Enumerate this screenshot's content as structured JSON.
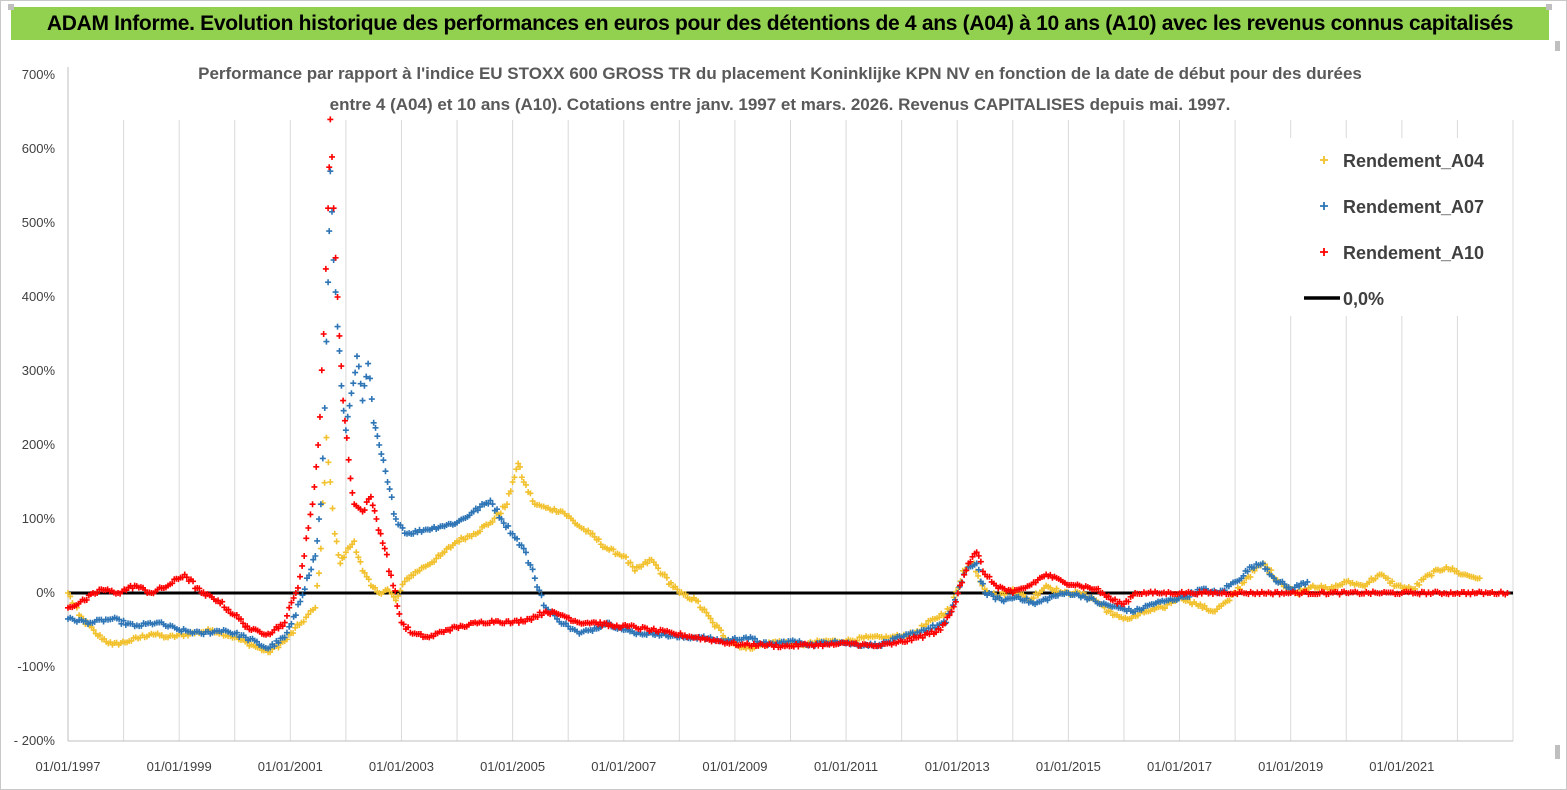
{
  "header": {
    "title": "ADAM Informe. Evolution historique des performances en euros pour des détentions de 4 ans (A04) à 10 ans (A10) avec les revenus connus capitalisés"
  },
  "chart_data": {
    "type": "scatter",
    "title_lines": [
      "Performance par rapport à l'indice EU STOXX 600 GROSS TR  du placement Koninklijke KPN NV en fonction de la date de début pour des durées",
      "entre 4 (A04) et 10 ans (A10). Cotations entre janv. 1997 et mars. 2026. Revenus CAPITALISES depuis mai. 1997."
    ],
    "xlabel": "",
    "ylabel": "",
    "x_range": [
      1997.0,
      2023.0
    ],
    "ylim": [
      -200,
      700
    ],
    "x_ticks": [
      {
        "x": 1997,
        "label": "01/01/1997"
      },
      {
        "x": 1999,
        "label": "01/01/1999"
      },
      {
        "x": 2001,
        "label": "01/01/2001"
      },
      {
        "x": 2003,
        "label": "01/01/2003"
      },
      {
        "x": 2005,
        "label": "01/01/2005"
      },
      {
        "x": 2007,
        "label": "01/01/2007"
      },
      {
        "x": 2009,
        "label": "01/01/2009"
      },
      {
        "x": 2011,
        "label": "01/01/2011"
      },
      {
        "x": 2013,
        "label": "01/01/2013"
      },
      {
        "x": 2015,
        "label": "01/01/2015"
      },
      {
        "x": 2017,
        "label": "01/01/2017"
      },
      {
        "x": 2019,
        "label": "01/01/2019"
      },
      {
        "x": 2021,
        "label": "01/01/2021"
      }
    ],
    "y_ticks": [
      {
        "y": 700,
        "label": "700%"
      },
      {
        "y": 600,
        "label": "600%"
      },
      {
        "y": 500,
        "label": "500%"
      },
      {
        "y": 400,
        "label": "400%"
      },
      {
        "y": 300,
        "label": "300%"
      },
      {
        "y": 200,
        "label": "200%"
      },
      {
        "y": 100,
        "label": "100%"
      },
      {
        "y": 0,
        "label": "0%"
      },
      {
        "y": -100,
        "label": "-100%"
      },
      {
        "y": -200,
        "label": "- 200%"
      }
    ],
    "grid": {
      "vertical": true,
      "horizontal": false
    },
    "legend_position": "top-right",
    "series": [
      {
        "name": "Rendement_A04",
        "color": "#f2c12e",
        "marker": "+",
        "points": [
          [
            1997.0,
            0
          ],
          [
            1997.2,
            -30
          ],
          [
            1997.5,
            -55
          ],
          [
            1997.8,
            -70
          ],
          [
            1998.1,
            -65
          ],
          [
            1998.5,
            -55
          ],
          [
            1998.8,
            -60
          ],
          [
            1999.2,
            -55
          ],
          [
            1999.6,
            -50
          ],
          [
            2000.0,
            -60
          ],
          [
            2000.3,
            -70
          ],
          [
            2000.6,
            -80
          ],
          [
            2000.9,
            -65
          ],
          [
            2001.2,
            -40
          ],
          [
            2001.45,
            -20
          ],
          [
            2001.55,
            60
          ],
          [
            2001.65,
            210
          ],
          [
            2001.72,
            150
          ],
          [
            2001.8,
            80
          ],
          [
            2001.9,
            40
          ],
          [
            2002.0,
            55
          ],
          [
            2002.15,
            70
          ],
          [
            2002.3,
            30
          ],
          [
            2002.45,
            10
          ],
          [
            2002.6,
            0
          ],
          [
            2002.75,
            5
          ],
          [
            2002.9,
            -10
          ],
          [
            2003.1,
            20
          ],
          [
            2003.4,
            35
          ],
          [
            2003.7,
            50
          ],
          [
            2004.0,
            70
          ],
          [
            2004.3,
            80
          ],
          [
            2004.6,
            95
          ],
          [
            2004.9,
            120
          ],
          [
            2005.0,
            150
          ],
          [
            2005.1,
            175
          ],
          [
            2005.2,
            150
          ],
          [
            2005.4,
            120
          ],
          [
            2005.6,
            115
          ],
          [
            2005.9,
            110
          ],
          [
            2006.2,
            90
          ],
          [
            2006.4,
            80
          ],
          [
            2006.7,
            60
          ],
          [
            2007.0,
            50
          ],
          [
            2007.2,
            30
          ],
          [
            2007.5,
            45
          ],
          [
            2007.7,
            25
          ],
          [
            2008.0,
            0
          ],
          [
            2008.3,
            -10
          ],
          [
            2008.6,
            -40
          ],
          [
            2008.9,
            -65
          ],
          [
            2009.2,
            -75
          ],
          [
            2009.5,
            -70
          ],
          [
            2009.8,
            -65
          ],
          [
            2010.2,
            -70
          ],
          [
            2010.6,
            -65
          ],
          [
            2011.0,
            -65
          ],
          [
            2011.4,
            -60
          ],
          [
            2011.8,
            -60
          ],
          [
            2012.2,
            -55
          ],
          [
            2012.6,
            -35
          ],
          [
            2012.9,
            -20
          ],
          [
            2013.1,
            30
          ],
          [
            2013.3,
            40
          ],
          [
            2013.45,
            10
          ],
          [
            2013.7,
            -5
          ],
          [
            2014.0,
            5
          ],
          [
            2014.3,
            -10
          ],
          [
            2014.6,
            10
          ],
          [
            2014.9,
            0
          ],
          [
            2015.2,
            0
          ],
          [
            2015.5,
            -10
          ],
          [
            2015.8,
            -30
          ],
          [
            2016.1,
            -35
          ],
          [
            2016.4,
            -25
          ],
          [
            2016.7,
            -20
          ],
          [
            2017.0,
            -5
          ],
          [
            2017.3,
            -15
          ],
          [
            2017.6,
            -25
          ],
          [
            2017.9,
            -10
          ],
          [
            2018.2,
            20
          ],
          [
            2018.5,
            40
          ],
          [
            2018.8,
            15
          ],
          [
            2019.1,
            0
          ],
          [
            2019.4,
            10
          ],
          [
            2019.7,
            5
          ],
          [
            2020.0,
            15
          ],
          [
            2020.3,
            10
          ],
          [
            2020.6,
            25
          ],
          [
            2020.9,
            10
          ],
          [
            2021.2,
            5
          ],
          [
            2021.5,
            25
          ],
          [
            2021.8,
            35
          ],
          [
            2022.1,
            25
          ],
          [
            2022.4,
            20
          ]
        ]
      },
      {
        "name": "Rendement_A07",
        "color": "#2e75b6",
        "marker": "+",
        "points": [
          [
            1997.0,
            -35
          ],
          [
            1997.4,
            -40
          ],
          [
            1997.8,
            -35
          ],
          [
            1998.2,
            -45
          ],
          [
            1998.6,
            -40
          ],
          [
            1999.0,
            -50
          ],
          [
            1999.4,
            -55
          ],
          [
            1999.8,
            -50
          ],
          [
            2000.2,
            -60
          ],
          [
            2000.6,
            -75
          ],
          [
            2000.9,
            -60
          ],
          [
            2001.1,
            -30
          ],
          [
            2001.3,
            20
          ],
          [
            2001.45,
            50
          ],
          [
            2001.55,
            120
          ],
          [
            2001.62,
            250
          ],
          [
            2001.68,
            420
          ],
          [
            2001.72,
            570
          ],
          [
            2001.78,
            450
          ],
          [
            2001.85,
            360
          ],
          [
            2001.92,
            280
          ],
          [
            2002.0,
            220
          ],
          [
            2002.1,
            270
          ],
          [
            2002.2,
            320
          ],
          [
            2002.3,
            260
          ],
          [
            2002.4,
            310
          ],
          [
            2002.5,
            230
          ],
          [
            2002.6,
            200
          ],
          [
            2002.75,
            150
          ],
          [
            2002.9,
            100
          ],
          [
            2003.1,
            80
          ],
          [
            2003.4,
            85
          ],
          [
            2003.7,
            90
          ],
          [
            2004.0,
            95
          ],
          [
            2004.3,
            110
          ],
          [
            2004.6,
            125
          ],
          [
            2004.8,
            100
          ],
          [
            2005.0,
            80
          ],
          [
            2005.2,
            60
          ],
          [
            2005.4,
            20
          ],
          [
            2005.6,
            -20
          ],
          [
            2005.8,
            -35
          ],
          [
            2006.0,
            -45
          ],
          [
            2006.2,
            -55
          ],
          [
            2006.4,
            -50
          ],
          [
            2006.7,
            -40
          ],
          [
            2007.0,
            -50
          ],
          [
            2007.3,
            -55
          ],
          [
            2007.6,
            -55
          ],
          [
            2008.0,
            -60
          ],
          [
            2008.4,
            -60
          ],
          [
            2008.8,
            -65
          ],
          [
            2009.2,
            -60
          ],
          [
            2009.6,
            -70
          ],
          [
            2010.0,
            -65
          ],
          [
            2010.4,
            -70
          ],
          [
            2010.8,
            -65
          ],
          [
            2011.2,
            -70
          ],
          [
            2011.6,
            -70
          ],
          [
            2012.0,
            -60
          ],
          [
            2012.4,
            -50
          ],
          [
            2012.8,
            -40
          ],
          [
            2013.0,
            0
          ],
          [
            2013.2,
            35
          ],
          [
            2013.35,
            40
          ],
          [
            2013.5,
            0
          ],
          [
            2013.8,
            -10
          ],
          [
            2014.1,
            -5
          ],
          [
            2014.4,
            -15
          ],
          [
            2014.7,
            -5
          ],
          [
            2015.0,
            0
          ],
          [
            2015.3,
            -5
          ],
          [
            2015.6,
            -15
          ],
          [
            2015.9,
            -20
          ],
          [
            2016.2,
            -25
          ],
          [
            2016.5,
            -15
          ],
          [
            2016.8,
            -10
          ],
          [
            2017.1,
            -5
          ],
          [
            2017.4,
            5
          ],
          [
            2017.7,
            0
          ],
          [
            2018.0,
            15
          ],
          [
            2018.3,
            35
          ],
          [
            2018.5,
            40
          ],
          [
            2018.7,
            20
          ],
          [
            2019.0,
            5
          ],
          [
            2019.3,
            15
          ]
        ]
      },
      {
        "name": "Rendement_A10",
        "color": "#ff0000",
        "marker": "+",
        "points": [
          [
            1997.0,
            -20
          ],
          [
            1997.3,
            -10
          ],
          [
            1997.6,
            5
          ],
          [
            1997.9,
            0
          ],
          [
            1998.2,
            10
          ],
          [
            1998.5,
            0
          ],
          [
            1998.8,
            10
          ],
          [
            1999.1,
            25
          ],
          [
            1999.4,
            0
          ],
          [
            1999.7,
            -10
          ],
          [
            2000.0,
            -30
          ],
          [
            2000.3,
            -50
          ],
          [
            2000.6,
            -55
          ],
          [
            2000.9,
            -40
          ],
          [
            2001.1,
            0
          ],
          [
            2001.25,
            50
          ],
          [
            2001.4,
            120
          ],
          [
            2001.5,
            200
          ],
          [
            2001.6,
            350
          ],
          [
            2001.68,
            520
          ],
          [
            2001.72,
            640
          ],
          [
            2001.78,
            520
          ],
          [
            2001.85,
            400
          ],
          [
            2001.95,
            260
          ],
          [
            2002.05,
            180
          ],
          [
            2002.15,
            120
          ],
          [
            2002.3,
            110
          ],
          [
            2002.45,
            130
          ],
          [
            2002.55,
            100
          ],
          [
            2002.7,
            60
          ],
          [
            2002.85,
            10
          ],
          [
            2003.0,
            -40
          ],
          [
            2003.2,
            -55
          ],
          [
            2003.5,
            -60
          ],
          [
            2003.8,
            -50
          ],
          [
            2004.1,
            -45
          ],
          [
            2004.4,
            -40
          ],
          [
            2004.7,
            -38
          ],
          [
            2005.0,
            -40
          ],
          [
            2005.3,
            -35
          ],
          [
            2005.6,
            -25
          ],
          [
            2005.9,
            -30
          ],
          [
            2006.2,
            -40
          ],
          [
            2006.5,
            -40
          ],
          [
            2006.8,
            -45
          ],
          [
            2007.1,
            -45
          ],
          [
            2007.5,
            -50
          ],
          [
            2007.9,
            -55
          ],
          [
            2008.3,
            -60
          ],
          [
            2008.7,
            -65
          ],
          [
            2009.1,
            -70
          ],
          [
            2009.5,
            -70
          ],
          [
            2009.9,
            -72
          ],
          [
            2010.3,
            -70
          ],
          [
            2010.7,
            -70
          ],
          [
            2011.1,
            -68
          ],
          [
            2011.5,
            -72
          ],
          [
            2011.9,
            -68
          ],
          [
            2012.3,
            -60
          ],
          [
            2012.7,
            -50
          ],
          [
            2012.9,
            -25
          ],
          [
            2013.05,
            10
          ],
          [
            2013.2,
            40
          ],
          [
            2013.35,
            55
          ],
          [
            2013.5,
            25
          ],
          [
            2013.7,
            10
          ],
          [
            2014.0,
            0
          ],
          [
            2014.3,
            10
          ],
          [
            2014.6,
            25
          ],
          [
            2014.9,
            15
          ],
          [
            2015.2,
            10
          ],
          [
            2015.5,
            5
          ],
          [
            2015.8,
            -10
          ],
          [
            2016.0,
            -15
          ],
          [
            2016.2,
            0
          ],
          [
            2016.6,
            0
          ],
          [
            2017.2,
            0
          ],
          [
            2018.0,
            0
          ],
          [
            2019.0,
            0
          ],
          [
            2020.0,
            0
          ],
          [
            2021.0,
            0
          ],
          [
            2022.0,
            0
          ],
          [
            2022.9,
            0
          ]
        ]
      }
    ],
    "reference_line": {
      "name": "0,0%",
      "y": 0,
      "color": "#000000"
    }
  }
}
